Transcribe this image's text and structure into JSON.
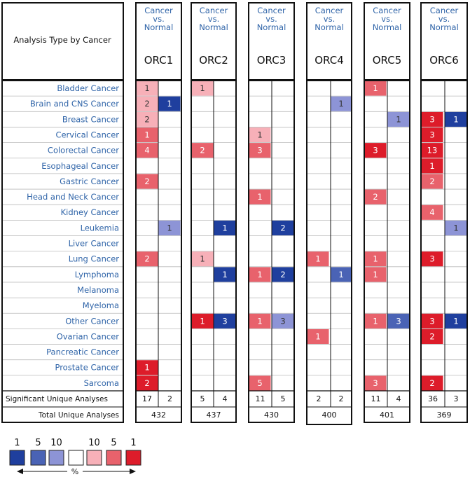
{
  "header": {
    "analysis_label": "Analysis Type by Cancer",
    "column_header_lines": [
      "Cancer",
      "vs.",
      "Normal"
    ]
  },
  "footer_labels": {
    "significant": "Significant Unique Analyses",
    "total": "Total Unique Analyses"
  },
  "legend": {
    "labels": [
      "1",
      "5",
      "10",
      "10",
      "5",
      "1"
    ],
    "unit": "%",
    "colors": [
      "#1f3f9e",
      "#4a63b5",
      "#8d94d6",
      "#ffffff",
      "#f7b0b8",
      "#e8626c",
      "#dd1c2a"
    ]
  },
  "colors": {
    "high_red": "#dd1c2a",
    "mid_red": "#e8626c",
    "light_red": "#f7b0b8",
    "high_blue": "#1f3f9e",
    "mid_blue": "#4a63b5",
    "light_blue": "#8d94d6",
    "cancer_label": "#2f64a8"
  },
  "chart_data": {
    "type": "heatmap",
    "cancers": [
      "Bladder Cancer",
      "Brain and CNS Cancer",
      "Breast Cancer",
      "Cervical Cancer",
      "Colorectal Cancer",
      "Esophageal Cancer",
      "Gastric Cancer",
      "Head and Neck Cancer",
      "Kidney Cancer",
      "Leukemia",
      "Liver Cancer",
      "Lung Cancer",
      "Lymphoma",
      "Melanoma",
      "Myeloma",
      "Other Cancer",
      "Ovarian Cancer",
      "Pancreatic Cancer",
      "Prostate Cancer",
      "Sarcoma"
    ],
    "genes": [
      {
        "name": "ORC1",
        "cells": [
          {
            "r": 0,
            "d": "up",
            "n": "1",
            "s": "light"
          },
          {
            "r": 1,
            "d": "up",
            "n": "2",
            "s": "light"
          },
          {
            "r": 1,
            "d": "down",
            "n": "1",
            "s": "high"
          },
          {
            "r": 2,
            "d": "up",
            "n": "2",
            "s": "light"
          },
          {
            "r": 3,
            "d": "up",
            "n": "1",
            "s": "mid"
          },
          {
            "r": 4,
            "d": "up",
            "n": "4",
            "s": "mid"
          },
          {
            "r": 6,
            "d": "up",
            "n": "2",
            "s": "mid"
          },
          {
            "r": 9,
            "d": "down",
            "n": "1",
            "s": "light"
          },
          {
            "r": 11,
            "d": "up",
            "n": "2",
            "s": "mid"
          },
          {
            "r": 18,
            "d": "up",
            "n": "1",
            "s": "high"
          },
          {
            "r": 19,
            "d": "up",
            "n": "2",
            "s": "high"
          }
        ],
        "significant_up": "17",
        "significant_down": "2",
        "total": "432"
      },
      {
        "name": "ORC2",
        "cells": [
          {
            "r": 0,
            "d": "up",
            "n": "1",
            "s": "light"
          },
          {
            "r": 4,
            "d": "up",
            "n": "2",
            "s": "mid"
          },
          {
            "r": 9,
            "d": "down",
            "n": "1",
            "s": "high"
          },
          {
            "r": 11,
            "d": "up",
            "n": "1",
            "s": "light"
          },
          {
            "r": 12,
            "d": "down",
            "n": "1",
            "s": "high"
          },
          {
            "r": 15,
            "d": "up",
            "n": "1",
            "s": "high"
          },
          {
            "r": 15,
            "d": "down",
            "n": "3",
            "s": "high"
          }
        ],
        "significant_up": "5",
        "significant_down": "4",
        "total": "437"
      },
      {
        "name": "ORC3",
        "cells": [
          {
            "r": 3,
            "d": "up",
            "n": "1",
            "s": "light"
          },
          {
            "r": 4,
            "d": "up",
            "n": "3",
            "s": "mid"
          },
          {
            "r": 7,
            "d": "up",
            "n": "1",
            "s": "mid"
          },
          {
            "r": 9,
            "d": "down",
            "n": "2",
            "s": "high"
          },
          {
            "r": 12,
            "d": "up",
            "n": "1",
            "s": "mid"
          },
          {
            "r": 12,
            "d": "down",
            "n": "2",
            "s": "high"
          },
          {
            "r": 15,
            "d": "up",
            "n": "1",
            "s": "mid"
          },
          {
            "r": 15,
            "d": "down",
            "n": "3",
            "s": "light"
          },
          {
            "r": 19,
            "d": "up",
            "n": "5",
            "s": "mid"
          }
        ],
        "significant_up": "11",
        "significant_down": "5",
        "total": "430"
      },
      {
        "name": "ORC4",
        "cells": [
          {
            "r": 1,
            "d": "down",
            "n": "1",
            "s": "light"
          },
          {
            "r": 11,
            "d": "up",
            "n": "1",
            "s": "mid"
          },
          {
            "r": 12,
            "d": "down",
            "n": "1",
            "s": "mid"
          },
          {
            "r": 16,
            "d": "up",
            "n": "1",
            "s": "mid"
          }
        ],
        "significant_up": "2",
        "significant_down": "2",
        "total": "400"
      },
      {
        "name": "ORC5",
        "cells": [
          {
            "r": 0,
            "d": "up",
            "n": "1",
            "s": "mid"
          },
          {
            "r": 2,
            "d": "down",
            "n": "1",
            "s": "light"
          },
          {
            "r": 4,
            "d": "up",
            "n": "3",
            "s": "high"
          },
          {
            "r": 7,
            "d": "up",
            "n": "2",
            "s": "mid"
          },
          {
            "r": 11,
            "d": "up",
            "n": "1",
            "s": "mid"
          },
          {
            "r": 12,
            "d": "up",
            "n": "1",
            "s": "mid"
          },
          {
            "r": 15,
            "d": "up",
            "n": "1",
            "s": "mid"
          },
          {
            "r": 15,
            "d": "down",
            "n": "3",
            "s": "mid"
          },
          {
            "r": 19,
            "d": "up",
            "n": "3",
            "s": "mid"
          }
        ],
        "significant_up": "11",
        "significant_down": "4",
        "total": "401"
      },
      {
        "name": "ORC6",
        "cells": [
          {
            "r": 2,
            "d": "up",
            "n": "3",
            "s": "high"
          },
          {
            "r": 2,
            "d": "down",
            "n": "1",
            "s": "high"
          },
          {
            "r": 3,
            "d": "up",
            "n": "3",
            "s": "high"
          },
          {
            "r": 4,
            "d": "up",
            "n": "13",
            "s": "high"
          },
          {
            "r": 5,
            "d": "up",
            "n": "1",
            "s": "high"
          },
          {
            "r": 6,
            "d": "up",
            "n": "2",
            "s": "mid"
          },
          {
            "r": 8,
            "d": "up",
            "n": "4",
            "s": "mid"
          },
          {
            "r": 9,
            "d": "down",
            "n": "1",
            "s": "light"
          },
          {
            "r": 11,
            "d": "up",
            "n": "3",
            "s": "high"
          },
          {
            "r": 15,
            "d": "up",
            "n": "3",
            "s": "high"
          },
          {
            "r": 15,
            "d": "down",
            "n": "1",
            "s": "high"
          },
          {
            "r": 16,
            "d": "up",
            "n": "2",
            "s": "high"
          },
          {
            "r": 19,
            "d": "up",
            "n": "2",
            "s": "high"
          }
        ],
        "significant_up": "36",
        "significant_down": "3",
        "total": "369"
      }
    ]
  }
}
